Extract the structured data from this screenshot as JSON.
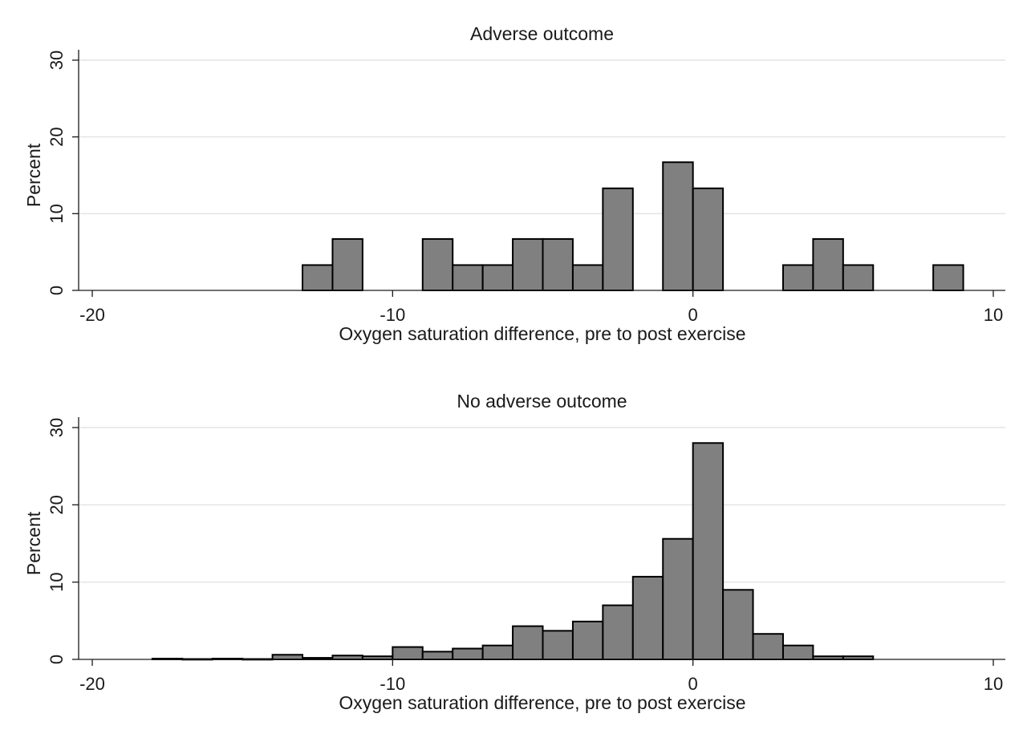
{
  "chart_data": [
    {
      "type": "bar",
      "subtype": "histogram",
      "title": "Adverse outcome",
      "xlabel": "Oxygen saturation difference, pre to post exercise",
      "ylabel": "Percent",
      "xlim": [
        -20,
        10
      ],
      "ylim": [
        0,
        30
      ],
      "xticks": [
        -20,
        -10,
        0,
        10
      ],
      "yticks": [
        0,
        10,
        20,
        30
      ],
      "grid": true,
      "bar_color": "#808080",
      "edge_color": "#000000",
      "bin_width": 1,
      "bins": [
        {
          "x": -12.5,
          "value": 3.3
        },
        {
          "x": -11.5,
          "value": 6.7
        },
        {
          "x": -8.5,
          "value": 6.7
        },
        {
          "x": -7.5,
          "value": 3.3
        },
        {
          "x": -6.5,
          "value": 3.3
        },
        {
          "x": -5.5,
          "value": 6.7
        },
        {
          "x": -4.5,
          "value": 6.7
        },
        {
          "x": -3.5,
          "value": 3.3
        },
        {
          "x": -2.5,
          "value": 13.3
        },
        {
          "x": -0.5,
          "value": 16.7
        },
        {
          "x": 0.5,
          "value": 13.3
        },
        {
          "x": 3.5,
          "value": 3.3
        },
        {
          "x": 4.5,
          "value": 6.7
        },
        {
          "x": 5.5,
          "value": 3.3
        },
        {
          "x": 8.5,
          "value": 3.3
        }
      ]
    },
    {
      "type": "bar",
      "subtype": "histogram",
      "title": "No adverse outcome",
      "xlabel": "Oxygen saturation difference, pre to post exercise",
      "ylabel": "Percent",
      "xlim": [
        -20,
        10
      ],
      "ylim": [
        0,
        30
      ],
      "xticks": [
        -20,
        -10,
        0,
        10
      ],
      "yticks": [
        0,
        10,
        20,
        30
      ],
      "grid": true,
      "bar_color": "#808080",
      "edge_color": "#000000",
      "bin_width": 1,
      "bins": [
        {
          "x": -17.5,
          "value": 0.1
        },
        {
          "x": -16.5,
          "value": 0.05
        },
        {
          "x": -15.5,
          "value": 0.1
        },
        {
          "x": -14.5,
          "value": 0.05
        },
        {
          "x": -13.5,
          "value": 0.6
        },
        {
          "x": -12.5,
          "value": 0.2
        },
        {
          "x": -11.5,
          "value": 0.5
        },
        {
          "x": -10.5,
          "value": 0.4
        },
        {
          "x": -9.5,
          "value": 1.6
        },
        {
          "x": -8.5,
          "value": 1.0
        },
        {
          "x": -7.5,
          "value": 1.4
        },
        {
          "x": -6.5,
          "value": 1.8
        },
        {
          "x": -5.5,
          "value": 4.3
        },
        {
          "x": -4.5,
          "value": 3.7
        },
        {
          "x": -3.5,
          "value": 4.9
        },
        {
          "x": -2.5,
          "value": 7.0
        },
        {
          "x": -1.5,
          "value": 10.7
        },
        {
          "x": -0.5,
          "value": 15.6
        },
        {
          "x": 0.5,
          "value": 28.0
        },
        {
          "x": 1.5,
          "value": 9.0
        },
        {
          "x": 2.5,
          "value": 3.3
        },
        {
          "x": 3.5,
          "value": 1.8
        },
        {
          "x": 4.5,
          "value": 0.4
        },
        {
          "x": 5.5,
          "value": 0.4
        }
      ]
    }
  ]
}
